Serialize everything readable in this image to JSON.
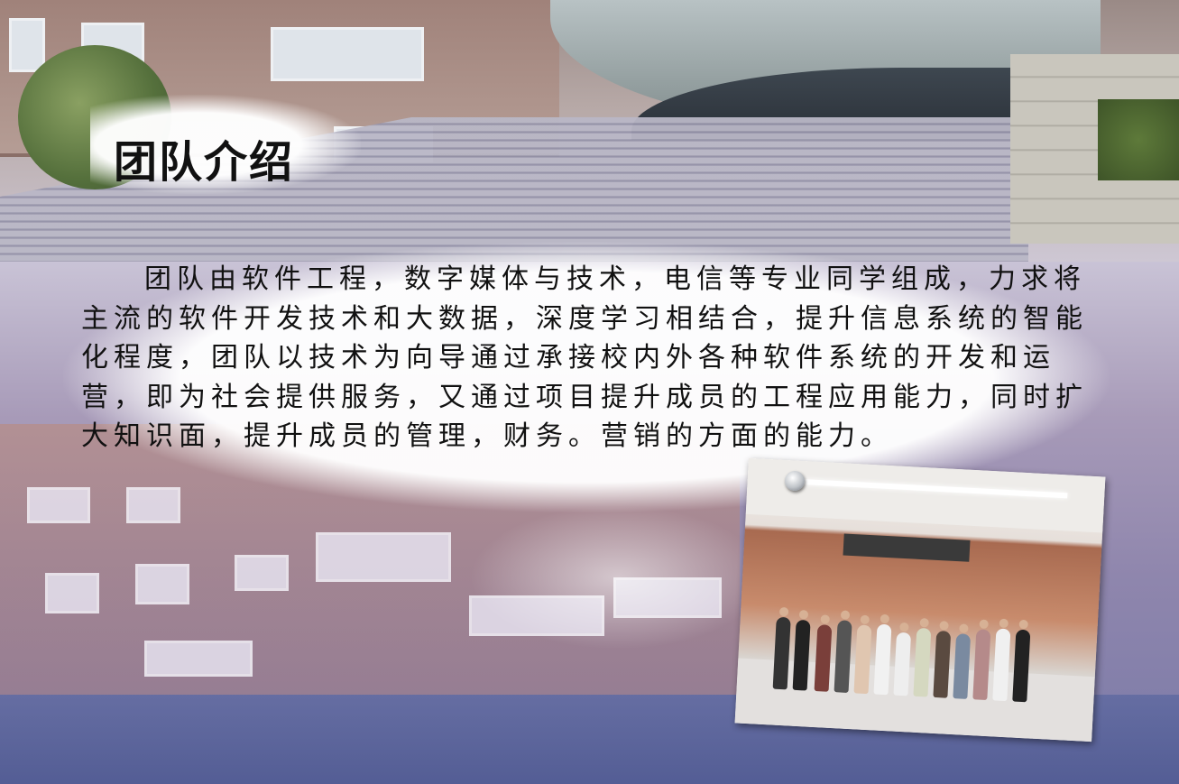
{
  "slide": {
    "title": "团队介绍",
    "body": "团队由软件工程，数字媒体与技术，电信等专业同学组成，力求将主流的软件开发技术和大数据，深度学习相结合，提升信息系统的智能化程度，团队以技术为向导通过承接校内外各种软件系统的开发和运营，即为社会提供服务，又通过项目提升成员的工程应用能力，同时扩大知识面，提升成员的管理，财务。营销的方面的能力。"
  },
  "images": {
    "background": "campus-building-with-stairs-and-water-reflection",
    "photo": "team-group-photo"
  },
  "colors": {
    "title_text": "#111111",
    "body_text": "#111111",
    "bubble": "#ffffff"
  }
}
